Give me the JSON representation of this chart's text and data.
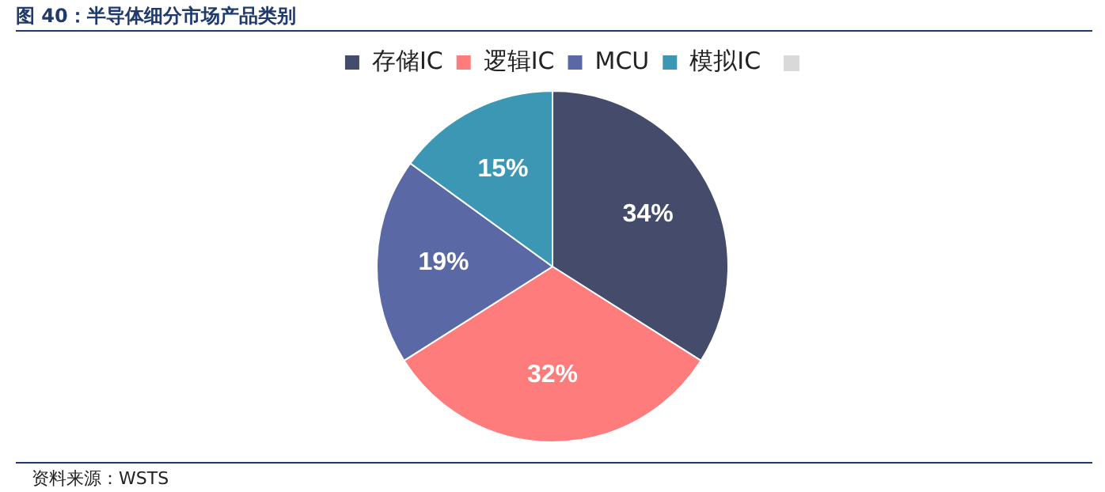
{
  "chart_data": {
    "type": "pie",
    "title": "图 40：半导体细分市场产品类别",
    "categories": [
      "存储IC",
      "逻辑IC",
      "MCU",
      "模拟IC"
    ],
    "values": [
      34,
      32,
      19,
      15
    ],
    "value_labels": [
      "34%",
      "32%",
      "19%",
      "15%"
    ],
    "colors": [
      "#444b6b",
      "#ff7c7c",
      "#5a69a6",
      "#3b97b4"
    ],
    "legend": "top",
    "annotations": [
      "资料来源：WSTS"
    ]
  }
}
